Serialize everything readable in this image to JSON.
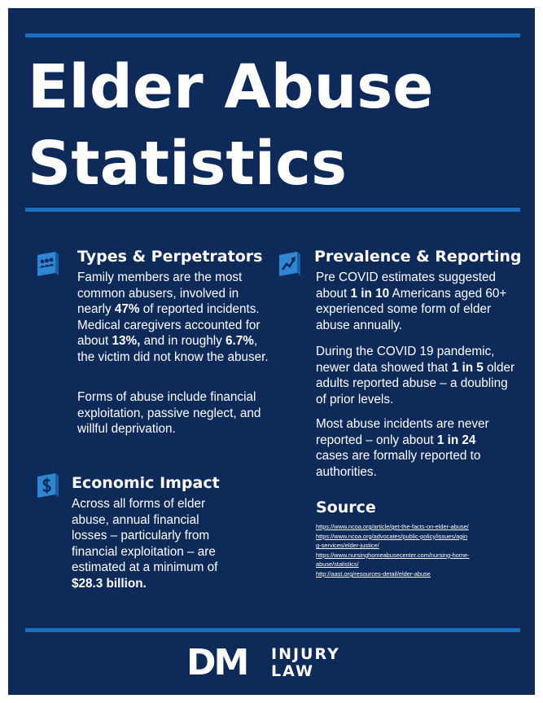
{
  "title": {
    "line1": "Elder Abuse",
    "line2": "Statistics"
  },
  "colors": {
    "background": "#0e2a59",
    "rule": "#1a6fc0",
    "icon": "#2f86d3",
    "text": "#ffffff"
  },
  "types": {
    "icon": "people-icon",
    "heading": "Types & Perpetrators",
    "p1": [
      {
        "t": "Family members are the most common abusers, involved in nearly "
      },
      {
        "t": "47%",
        "b": true
      },
      {
        "t": " of reported incidents. Medical caregivers accounted for about "
      },
      {
        "t": "13%,",
        "b": true
      },
      {
        "t": " and in roughly "
      },
      {
        "t": "6.7%",
        "b": true
      },
      {
        "t": ", the victim did not know the abuser."
      }
    ],
    "p2": "Forms of abuse include financial exploitation, passive neglect, and willful deprivation."
  },
  "prevalence": {
    "icon": "trend-up-icon",
    "heading": "Prevalence & Reporting",
    "p1": [
      {
        "t": "Pre COVID estimates suggested about "
      },
      {
        "t": "1 in 10",
        "b": true
      },
      {
        "t": " Americans aged 60+ experienced some form of elder abuse annually."
      }
    ],
    "p2": [
      {
        "t": "During the COVID 19 pandemic, newer data showed that "
      },
      {
        "t": "1 in 5",
        "b": true
      },
      {
        "t": " older adults reported abuse – a doubling of prior levels."
      }
    ],
    "p3": [
      {
        "t": "Most abuse incidents are never reported – only about "
      },
      {
        "t": "1 in 24",
        "b": true
      },
      {
        "t": " cases are formally reported to authorities."
      }
    ]
  },
  "economic": {
    "icon": "dollar-icon",
    "heading": "Economic Impact",
    "p1": [
      {
        "t": "Across all forms of elder abuse, annual financial losses – particularly from financial exploitation – are estimated at a minimum of "
      },
      {
        "t": "$28.3 billion.",
        "b": true
      }
    ]
  },
  "source": {
    "heading": "Source",
    "links": [
      "https://www.ncoa.org/article/get-the-facts-on-elder-abuse/",
      "https://www.ncoa.org/advocates/public-policy/issues/aging-services/elder-justice/",
      "https://www.nursinghomeabusecenter.com/nursing-home-abuse/statistics/",
      "http://aast.org/resources-detail/elder-abuse"
    ]
  },
  "logo": {
    "mark": "DM",
    "line1": "INJURY",
    "line2": "LAW"
  }
}
